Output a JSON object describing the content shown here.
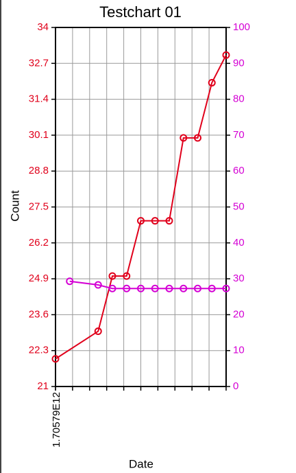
{
  "chart_data": {
    "type": "line",
    "title": "Testchart 01",
    "x_label": "Date",
    "y_label": "Count",
    "xlim": [
      1705790000000,
      1706826800000
    ],
    "xticks": [
      {
        "value": 1705790000000,
        "label": "1.70579E12"
      }
    ],
    "xgrid": [
      1705790000000,
      1705893680000,
      1705997360000,
      1706101040000,
      1706204720000,
      1706308400000,
      1706412080000,
      1706515760000,
      1706619440000,
      1706723120000,
      1706826800000
    ],
    "ylim": [
      21,
      34
    ],
    "yticks": [
      21,
      22.3,
      23.6,
      24.9,
      26.2,
      27.5,
      28.8,
      30.1,
      31.4,
      32.7,
      34
    ],
    "y2lim": [
      0,
      100
    ],
    "y2ticks": [
      0,
      10,
      20,
      30,
      40,
      50,
      60,
      70,
      80,
      90,
      100
    ],
    "grid": true,
    "left_axis_color": "#e0001b",
    "right_axis_color": "#d400d4",
    "series": [
      {
        "color": "#e0001b",
        "x": [
          1705790000000,
          1706049200000,
          1706135600000,
          1706222000000,
          1706308400000,
          1706394800000,
          1706481200000,
          1706567600000,
          1706654000000,
          1706740400000,
          1706826800000
        ],
        "values": [
          22,
          23,
          25,
          25,
          27,
          27,
          27,
          30,
          30,
          32,
          33
        ]
      },
      {
        "color": "#d400d4",
        "axis": "y2",
        "x": [
          1705876400000,
          1706049200000,
          1706135600000,
          1706222000000,
          1706308400000,
          1706394800000,
          1706481200000,
          1706567600000,
          1706654000000,
          1706740400000,
          1706826800000
        ],
        "values": [
          29.3,
          28.3,
          27.3,
          27.3,
          27.3,
          27.3,
          27.3,
          27.3,
          27.3,
          27.3,
          27.3
        ]
      }
    ]
  }
}
